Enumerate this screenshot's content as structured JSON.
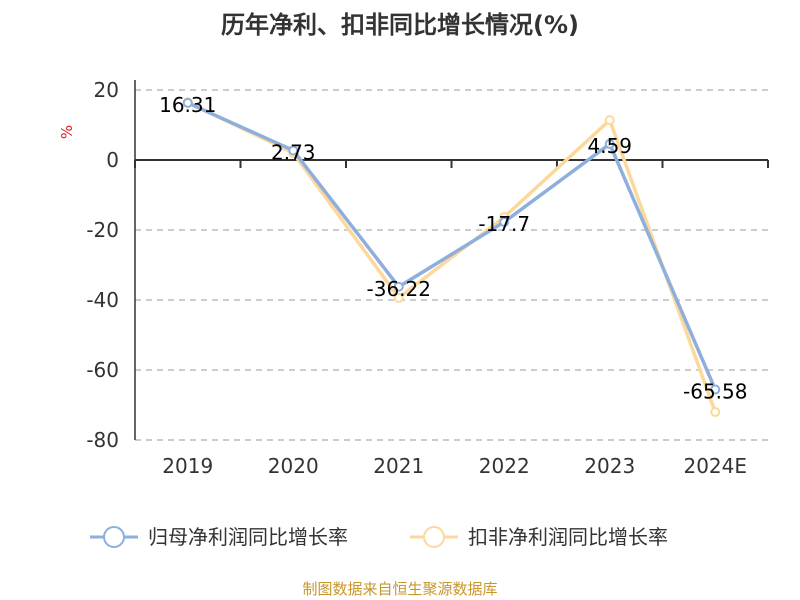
{
  "chart_data": {
    "type": "line",
    "title": "历年净利、扣非同比增长情况(%)",
    "ylabel": "%",
    "categories": [
      "2019",
      "2020",
      "2021",
      "2022",
      "2023",
      "2024E"
    ],
    "ylim": [
      -80,
      20
    ],
    "yticks": [
      20,
      0,
      -20,
      -40,
      -60,
      -80
    ],
    "grid": true,
    "legend_placement": "bottom",
    "series": [
      {
        "name": "归母净利润同比增长率",
        "values": [
          16.31,
          2.73,
          -36.22,
          -17.7,
          4.59,
          -65.58
        ],
        "color": "#8eaedc",
        "labels": [
          "16.31",
          "2.73",
          "-36.22",
          "-17.7",
          "4.59",
          "-65.58"
        ]
      },
      {
        "name": "扣非净利润同比增长率",
        "values": [
          16.5,
          2.0,
          -39.4,
          -16.3,
          11.4,
          -72.0
        ],
        "color": "#fdd89b"
      }
    ]
  },
  "source": "制图数据来自恒生聚源数据库"
}
